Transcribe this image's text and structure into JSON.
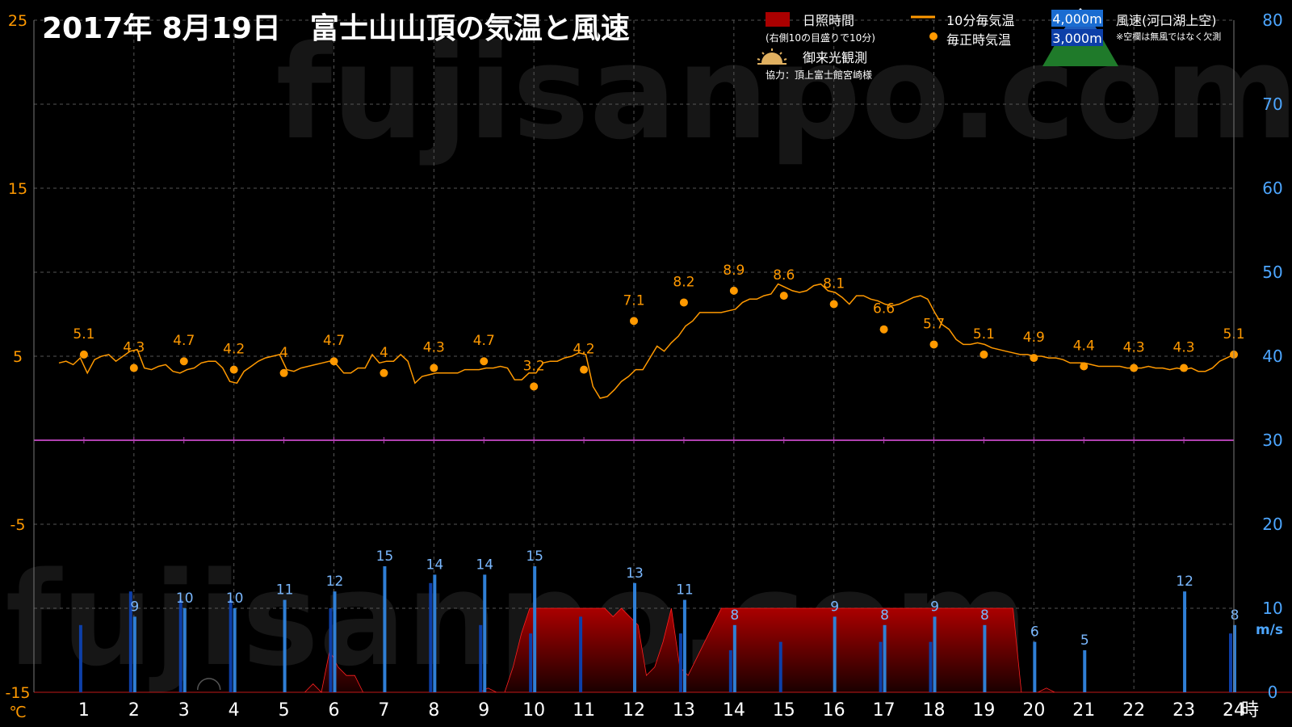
{
  "chart_data": {
    "type": "line",
    "title": "2017年  8月19日　富士山山頂の気温と風速",
    "watermark": "fujisanpo.com",
    "x_unit": "時",
    "x_ticks": [
      "1",
      "2",
      "3",
      "4",
      "5",
      "6",
      "7",
      "8",
      "9",
      "10",
      "11",
      "12",
      "13",
      "14",
      "15",
      "16",
      "17",
      "18",
      "19",
      "20",
      "21",
      "22",
      "23",
      "24"
    ],
    "left_axis": {
      "unit": "℃",
      "ticks": [
        "25",
        "15",
        "5",
        "-5",
        "-15"
      ],
      "range": [
        -15,
        25
      ]
    },
    "right_axis": {
      "unit": "m/s",
      "ticks": [
        "80",
        "70",
        "60",
        "50",
        "40",
        "30",
        "20",
        "10",
        "0"
      ],
      "range": [
        0,
        80
      ]
    },
    "zero_line_temp": 0,
    "legend": {
      "sunshine": "日照時間",
      "sunshine_note": "(右側10の目盛りで10分)",
      "temp10": "10分毎気温",
      "hourly": "毎正時気温",
      "goraiko": "御来光観測",
      "credit": "協力：頂上富士館宮崎様",
      "alt4000": "4,000m",
      "alt3000": "3,000m",
      "wind_label": "風速(河口湖上空)",
      "wind_note": "※空欄は無風ではなく欠測"
    },
    "colors": {
      "temp": "#ff9900",
      "left_axis": "#ff9900",
      "right_axis": "#4da6ff",
      "wind4000": "#2f7fd6",
      "wind3000": "#0d3fa8",
      "sunshine": "#aa0000",
      "zero_line": "#b040b0",
      "grid": "#555555"
    },
    "hourly_temp": {
      "x": [
        1,
        2,
        3,
        4,
        5,
        6,
        7,
        8,
        9,
        10,
        11,
        12,
        13,
        14,
        15,
        16,
        17,
        18,
        19,
        20,
        21,
        22,
        23,
        24
      ],
      "values": [
        "5.1",
        "4.3",
        "4.7",
        "4.2",
        "4",
        "4.7",
        "4",
        "4.3",
        "4.7",
        "3.2",
        "4.2",
        "7.1",
        "8.2",
        "8.9",
        "8.6",
        "8.1",
        "6.6",
        "5.7",
        "5.1",
        "4.9",
        "4.4",
        "4.3",
        "4.3",
        "5.1"
      ]
    },
    "temp_10min": [
      4.6,
      4.7,
      4.5,
      4.9,
      4.0,
      4.8,
      5.0,
      5.1,
      4.7,
      5.0,
      5.3,
      5.4,
      4.3,
      4.2,
      4.4,
      4.5,
      4.1,
      4.0,
      4.2,
      4.3,
      4.6,
      4.7,
      4.7,
      4.3,
      3.5,
      3.4,
      4.1,
      4.4,
      4.7,
      4.9,
      5.0,
      5.1,
      4.2,
      4.1,
      4.3,
      4.4,
      4.5,
      4.6,
      4.7,
      4.5,
      4.0,
      4.0,
      4.3,
      4.3,
      5.1,
      4.6,
      4.7,
      4.7,
      5.1,
      4.7,
      3.4,
      3.8,
      3.9,
      4.0,
      4.0,
      4.0,
      4.0,
      4.2,
      4.2,
      4.2,
      4.3,
      4.3,
      4.4,
      4.3,
      3.6,
      3.6,
      4.0,
      4.0,
      4.6,
      4.7,
      4.7,
      4.9,
      5.0,
      5.2,
      5.1,
      3.2,
      2.5,
      2.6,
      3.0,
      3.5,
      3.8,
      4.2,
      4.2,
      4.9,
      5.6,
      5.3,
      5.8,
      6.2,
      6.8,
      7.1,
      7.6,
      7.6,
      7.6,
      7.6,
      7.7,
      7.8,
      8.2,
      8.4,
      8.4,
      8.6,
      8.7,
      9.3,
      9.1,
      8.9,
      8.8,
      8.9,
      9.2,
      9.3,
      8.9,
      8.8,
      8.5,
      8.1,
      8.6,
      8.6,
      8.4,
      8.3,
      8.1,
      8.0,
      8.1,
      8.3,
      8.5,
      8.6,
      8.4,
      7.6,
      6.9,
      6.6,
      6.0,
      5.7,
      5.7,
      5.8,
      5.7,
      5.5,
      5.4,
      5.3,
      5.2,
      5.1,
      5.1,
      5.0,
      5.0,
      4.9,
      4.9,
      4.8,
      4.6,
      4.6,
      4.6,
      4.5,
      4.4,
      4.4,
      4.4,
      4.4,
      4.3,
      4.3,
      4.3,
      4.4,
      4.3,
      4.3,
      4.2,
      4.3,
      4.2,
      4.3,
      4.1,
      4.1,
      4.3,
      4.7,
      4.9,
      5.1
    ],
    "wind_4000m": {
      "x": [
        2,
        3,
        4,
        5,
        6,
        7,
        8,
        9,
        10,
        12,
        13,
        14,
        16,
        17,
        18,
        19,
        20,
        21,
        23,
        24
      ],
      "values": [
        "9",
        "10",
        "10",
        "11",
        "12",
        "15",
        "14",
        "14",
        "15",
        "13",
        "11",
        "8",
        "9",
        "8",
        "9",
        "8",
        "6",
        "5",
        "12",
        "8"
      ]
    },
    "wind_3000m": {
      "x": [
        1,
        2,
        3,
        4,
        6,
        8,
        9,
        10,
        11,
        13,
        14,
        15,
        17,
        18,
        24
      ],
      "values": [
        8,
        12,
        11,
        11,
        10,
        13,
        8,
        7,
        9,
        7,
        5,
        6,
        6,
        6,
        7
      ]
    },
    "sunshine_10min": [
      0,
      0,
      0,
      0,
      0,
      0,
      0,
      0,
      0,
      0,
      0,
      0,
      0,
      0,
      0,
      0,
      0,
      0,
      0,
      0,
      0,
      0,
      0,
      0,
      0,
      0,
      0,
      0,
      0,
      0,
      0,
      0,
      0,
      1,
      0,
      5,
      3,
      2,
      2,
      0,
      0,
      0,
      0,
      0,
      0,
      0,
      0,
      0,
      0,
      0,
      0,
      0,
      0,
      0,
      0.5,
      0,
      0,
      3,
      7,
      10,
      10,
      10,
      10,
      10,
      10,
      10,
      10,
      10,
      10,
      9,
      10,
      9,
      8,
      2,
      3,
      6,
      10,
      3,
      2,
      4,
      6,
      8,
      10,
      10,
      10,
      10,
      10,
      10,
      10,
      10,
      10,
      10,
      10,
      10,
      10,
      10,
      10,
      10,
      10,
      10,
      10,
      10,
      10,
      10,
      10,
      10,
      10,
      10,
      10,
      10,
      10,
      10,
      10,
      10,
      10,
      10,
      10,
      10,
      0,
      0,
      0,
      0.5,
      0,
      0,
      0,
      0,
      0,
      0,
      0,
      0,
      0,
      0,
      0,
      0,
      0,
      0,
      0,
      0,
      0,
      0,
      0,
      0,
      0,
      0,
      0,
      0,
      0,
      0,
      0,
      0,
      0,
      0,
      0,
      0,
      0,
      0,
      0,
      0,
      0,
      0,
      0
    ]
  }
}
